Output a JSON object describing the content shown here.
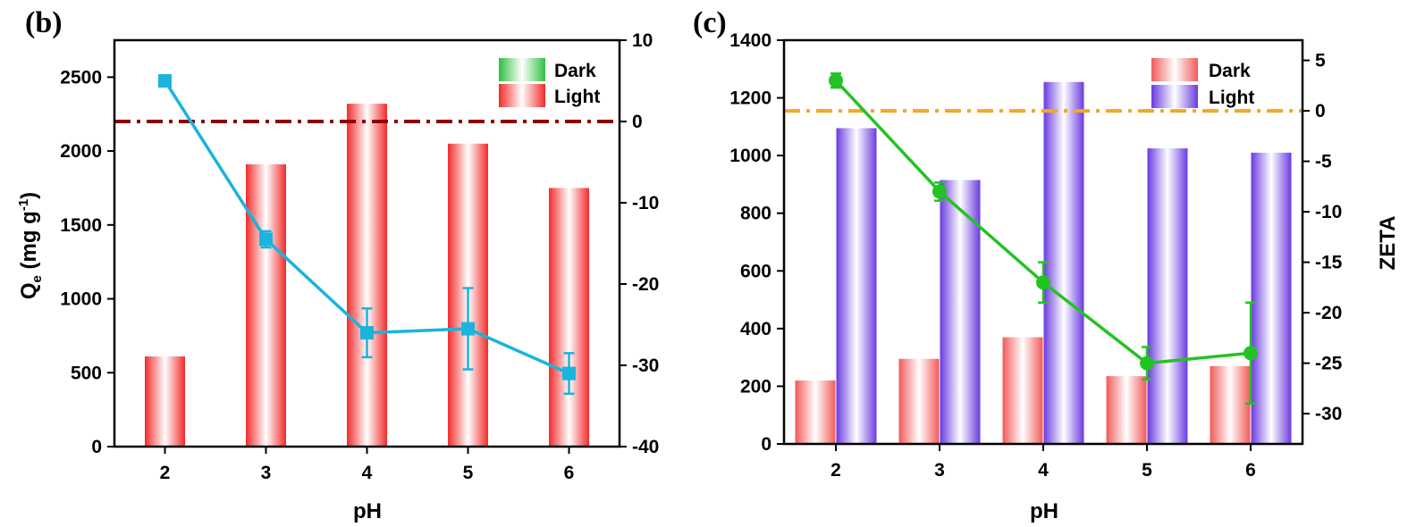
{
  "chart_data": [
    {
      "panel_label": "(b)",
      "type": "bar",
      "categories": [
        "2",
        "3",
        "4",
        "5",
        "6"
      ],
      "xlabel": "pH",
      "ylabel": "Q",
      "ylabel_sub": "e",
      "ylabel_units": " (mg g",
      "ylabel_sup": "-1",
      "ylabel_close": ")",
      "ylim": [
        0,
        2750
      ],
      "yticks": [
        0,
        500,
        1000,
        1500,
        2000,
        2500
      ],
      "y2lim": [
        -40,
        10
      ],
      "y2ticks": [
        -40,
        -30,
        -20,
        -10,
        0,
        10
      ],
      "grid": false,
      "legend_position": "top-right",
      "series": [
        {
          "name": "Dark",
          "color": "#2fbf3f",
          "values": [
            0,
            0,
            40,
            30,
            0
          ]
        },
        {
          "name": "Light",
          "color": "#f22b2b",
          "values": [
            610,
            1910,
            2320,
            2050,
            1750
          ]
        }
      ],
      "line_series": {
        "axis": "right",
        "color": "#1ab4dc",
        "marker": "square",
        "values": [
          5,
          -14.5,
          -26,
          -25.5,
          -31
        ],
        "errors": [
          0.6,
          1.0,
          3.0,
          5.0,
          2.5
        ]
      },
      "reference_line": {
        "axis": "right",
        "value": 0,
        "color": "#8b0000",
        "style": "dash-dot"
      }
    },
    {
      "panel_label": "(c)",
      "type": "bar",
      "categories": [
        "2",
        "3",
        "4",
        "5",
        "6"
      ],
      "xlabel": "pH",
      "ylabel": "",
      "y2label": "ZETA",
      "ylim": [
        0,
        1400
      ],
      "yticks": [
        0,
        200,
        400,
        600,
        800,
        1000,
        1200,
        1400
      ],
      "y2lim": [
        -33,
        7
      ],
      "y2ticks": [
        -30,
        -25,
        -20,
        -15,
        -10,
        -5,
        0,
        5
      ],
      "grid": false,
      "legend_position": "top-right",
      "series": [
        {
          "name": "Dark",
          "color": "#f25a5a",
          "values": [
            220,
            295,
            370,
            235,
            270
          ]
        },
        {
          "name": "Light",
          "color": "#6a3be0",
          "values": [
            1095,
            915,
            1255,
            1025,
            1010
          ]
        }
      ],
      "line_series": {
        "axis": "right",
        "color": "#22c322",
        "marker": "circle",
        "values": [
          3,
          -8,
          -17,
          -25,
          -24
        ],
        "errors": [
          0.7,
          0.9,
          2.0,
          1.6,
          5.0
        ]
      },
      "reference_line": {
        "axis": "right",
        "value": 0,
        "color": "#f5a623",
        "style": "dash-dot"
      }
    }
  ]
}
